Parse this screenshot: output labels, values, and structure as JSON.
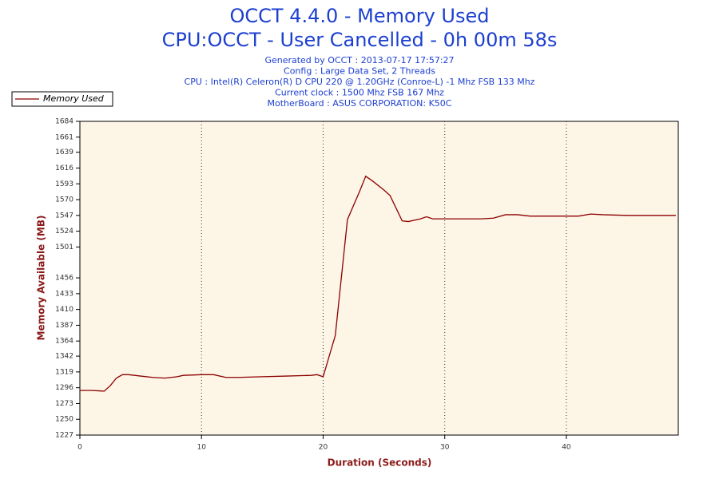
{
  "chart_data": {
    "type": "line",
    "title": "OCCT 4.4.0 - Memory Used",
    "subtitle": "CPU:OCCT - User Cancelled - 0h 00m 58s",
    "info": [
      "Generated by OCCT : 2013-07-17 17:57:27",
      "Config : Large Data Set, 2 Threads",
      "CPU : Intel(R) Celeron(R) D CPU 220 @ 1.20GHz (Conroe-L) -1 Mhz FSB 133 Mhz",
      "Current clock : 1500 Mhz FSB 167 Mhz",
      "MotherBoard : ASUS CORPORATION: K50C"
    ],
    "x_label": "Duration (Seconds)",
    "y_label": "Memory Available (MB)",
    "x": [
      0,
      1,
      2,
      2.5,
      3,
      3.5,
      4,
      5,
      6,
      7,
      8,
      8.5,
      10,
      11,
      12,
      13,
      15,
      17,
      19,
      19.5,
      20,
      21,
      22,
      23,
      23.5,
      24,
      25,
      25.5,
      26.5,
      27,
      28,
      28.5,
      29,
      30,
      33,
      34,
      35,
      36,
      37,
      40,
      41,
      42,
      43,
      45,
      49
    ],
    "series": [
      {
        "name": "Memory Used",
        "color": "#8b0000",
        "values": [
          1292,
          1292,
          1291,
          1299,
          1310,
          1315,
          1315,
          1313,
          1311,
          1310,
          1312,
          1314,
          1315,
          1315,
          1311,
          1311,
          1312,
          1313,
          1314,
          1315,
          1312,
          1372,
          1541,
          1582,
          1604,
          1598,
          1584,
          1576,
          1539,
          1538,
          1542,
          1545,
          1542,
          1542,
          1542,
          1543,
          1548,
          1548,
          1546,
          1546,
          1546,
          1549,
          1548,
          1547,
          1547
        ]
      }
    ],
    "xlim": [
      0,
      49.2
    ],
    "xticks": [
      0,
      10,
      20,
      30,
      40
    ],
    "ylim": [
      1227,
      1684
    ],
    "yticks": [
      1227,
      1250,
      1273,
      1296,
      1319,
      1342,
      1364,
      1387,
      1410,
      1433,
      1456,
      1501,
      1524,
      1547,
      1570,
      1593,
      1616,
      1639,
      1661,
      1684
    ],
    "grid": true,
    "legend": "top-left",
    "plot_background": "#fdf5e6"
  }
}
